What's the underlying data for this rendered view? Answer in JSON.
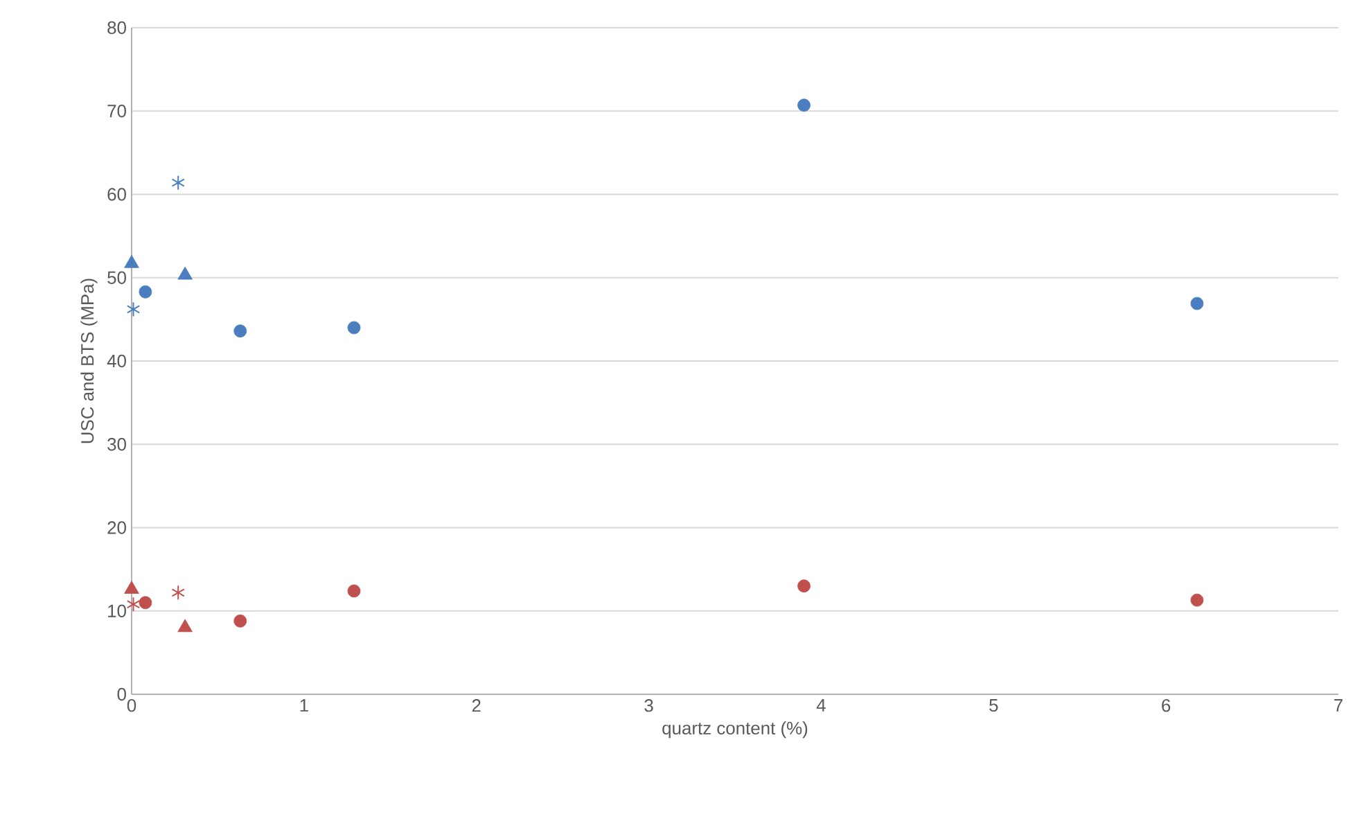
{
  "chart_data": {
    "type": "scatter",
    "xlabel": "quartz content (%)",
    "ylabel": "USC and  BTS (MPa)",
    "xlim": [
      0,
      7
    ],
    "xticks": [
      0,
      1,
      2,
      3,
      4,
      5,
      6,
      7
    ],
    "ylim": [
      0,
      80
    ],
    "yticks": [
      0,
      10,
      20,
      30,
      40,
      50,
      60,
      70,
      80
    ],
    "grid": "y",
    "series": [
      {
        "color": "#4a7ebf",
        "marker": "circle",
        "x": [
          0.08,
          0.63,
          1.29,
          3.9,
          6.18
        ],
        "values": [
          48.3,
          43.6,
          44,
          70.7,
          46.9
        ]
      },
      {
        "color": "#c0504d",
        "marker": "circle",
        "x": [
          0.08,
          0.63,
          1.29,
          3.9,
          6.18
        ],
        "values": [
          11,
          8.8,
          12.4,
          13,
          11.3
        ]
      },
      {
        "color": "#4a7ebf",
        "marker": "triangle",
        "x": [
          0,
          0.31
        ],
        "values": [
          51.7,
          50.3
        ]
      },
      {
        "color": "#c0504d",
        "marker": "triangle",
        "x": [
          0,
          0.31
        ],
        "values": [
          12.6,
          8
        ]
      },
      {
        "color": "#4a7ebf",
        "marker": "cross",
        "x": [
          0.01,
          0.27
        ],
        "values": [
          46.2,
          61.4
        ]
      },
      {
        "color": "#c0504d",
        "marker": "cross",
        "x": [
          0.01,
          0.27
        ],
        "values": [
          10.8,
          12.2
        ]
      }
    ]
  }
}
